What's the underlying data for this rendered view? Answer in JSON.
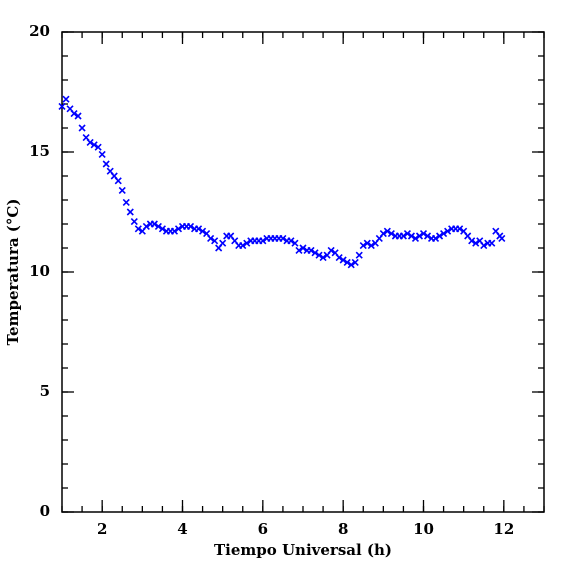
{
  "chart_data": {
    "type": "scatter",
    "xlabel": "Tiempo Universal (h)",
    "ylabel": "Temperatura (°C)",
    "xlim": [
      1,
      13
    ],
    "ylim": [
      0,
      20
    ],
    "xticks": [
      2,
      4,
      6,
      8,
      10,
      12
    ],
    "yticks": [
      0,
      5,
      10,
      15,
      20
    ],
    "xminorticks": [
      1,
      1.5,
      2,
      2.5,
      3,
      3.5,
      4,
      4.5,
      5,
      5.5,
      6,
      6.5,
      7,
      7.5,
      8,
      8.5,
      9,
      9.5,
      10,
      10.5,
      11,
      11.5,
      12,
      12.5,
      13
    ],
    "yminorticks": [
      0,
      1,
      2,
      3,
      4,
      5,
      6,
      7,
      8,
      9,
      10,
      11,
      12,
      13,
      14,
      15,
      16,
      17,
      18,
      19,
      20
    ],
    "x": [
      1.0,
      1.1,
      1.2,
      1.3,
      1.4,
      1.5,
      1.6,
      1.7,
      1.8,
      1.9,
      2.0,
      2.1,
      2.2,
      2.3,
      2.4,
      2.5,
      2.6,
      2.7,
      2.8,
      2.9,
      3.0,
      3.1,
      3.2,
      3.3,
      3.4,
      3.5,
      3.6,
      3.7,
      3.8,
      3.9,
      4.0,
      4.1,
      4.2,
      4.3,
      4.4,
      4.5,
      4.6,
      4.7,
      4.8,
      4.9,
      5.0,
      5.1,
      5.2,
      5.3,
      5.4,
      5.5,
      5.6,
      5.7,
      5.8,
      5.9,
      6.0,
      6.1,
      6.2,
      6.3,
      6.4,
      6.5,
      6.6,
      6.7,
      6.8,
      6.9,
      7.0,
      7.1,
      7.2,
      7.3,
      7.4,
      7.5,
      7.6,
      7.7,
      7.8,
      7.9,
      8.0,
      8.1,
      8.2,
      8.3,
      8.4,
      8.5,
      8.6,
      8.7,
      8.8,
      8.9,
      9.0,
      9.1,
      9.2,
      9.3,
      9.4,
      9.5,
      9.6,
      9.7,
      9.8,
      9.9,
      10.0,
      10.1,
      10.2,
      10.3,
      10.4,
      10.5,
      10.6,
      10.7,
      10.8,
      10.9,
      11.0,
      11.1,
      11.2,
      11.3,
      11.4,
      11.5,
      11.6,
      11.7,
      11.8,
      11.9,
      11.95
    ],
    "series": [
      {
        "color": "#0000ff",
        "values": [
          16.9,
          17.2,
          16.8,
          16.6,
          16.5,
          16.0,
          15.6,
          15.4,
          15.3,
          15.2,
          14.9,
          14.5,
          14.2,
          14.0,
          13.8,
          13.4,
          12.9,
          12.5,
          12.1,
          11.8,
          11.7,
          11.9,
          12.0,
          12.0,
          11.9,
          11.8,
          11.7,
          11.7,
          11.7,
          11.8,
          11.9,
          11.9,
          11.9,
          11.8,
          11.8,
          11.7,
          11.6,
          11.4,
          11.3,
          11.0,
          11.2,
          11.5,
          11.5,
          11.3,
          11.1,
          11.1,
          11.2,
          11.3,
          11.3,
          11.3,
          11.3,
          11.4,
          11.4,
          11.4,
          11.4,
          11.4,
          11.3,
          11.3,
          11.2,
          10.9,
          11.0,
          10.9,
          10.9,
          10.8,
          10.7,
          10.6,
          10.7,
          10.9,
          10.8,
          10.6,
          10.5,
          10.4,
          10.3,
          10.4,
          10.7,
          11.1,
          11.2,
          11.1,
          11.2,
          11.4,
          11.6,
          11.7,
          11.6,
          11.5,
          11.5,
          11.5,
          11.6,
          11.5,
          11.4,
          11.5,
          11.6,
          11.5,
          11.4,
          11.4,
          11.5,
          11.6,
          11.7,
          11.8,
          11.8,
          11.8,
          11.7,
          11.5,
          11.3,
          11.2,
          11.3,
          11.1,
          11.2,
          11.2,
          11.7,
          11.5,
          11.4
        ]
      }
    ]
  }
}
